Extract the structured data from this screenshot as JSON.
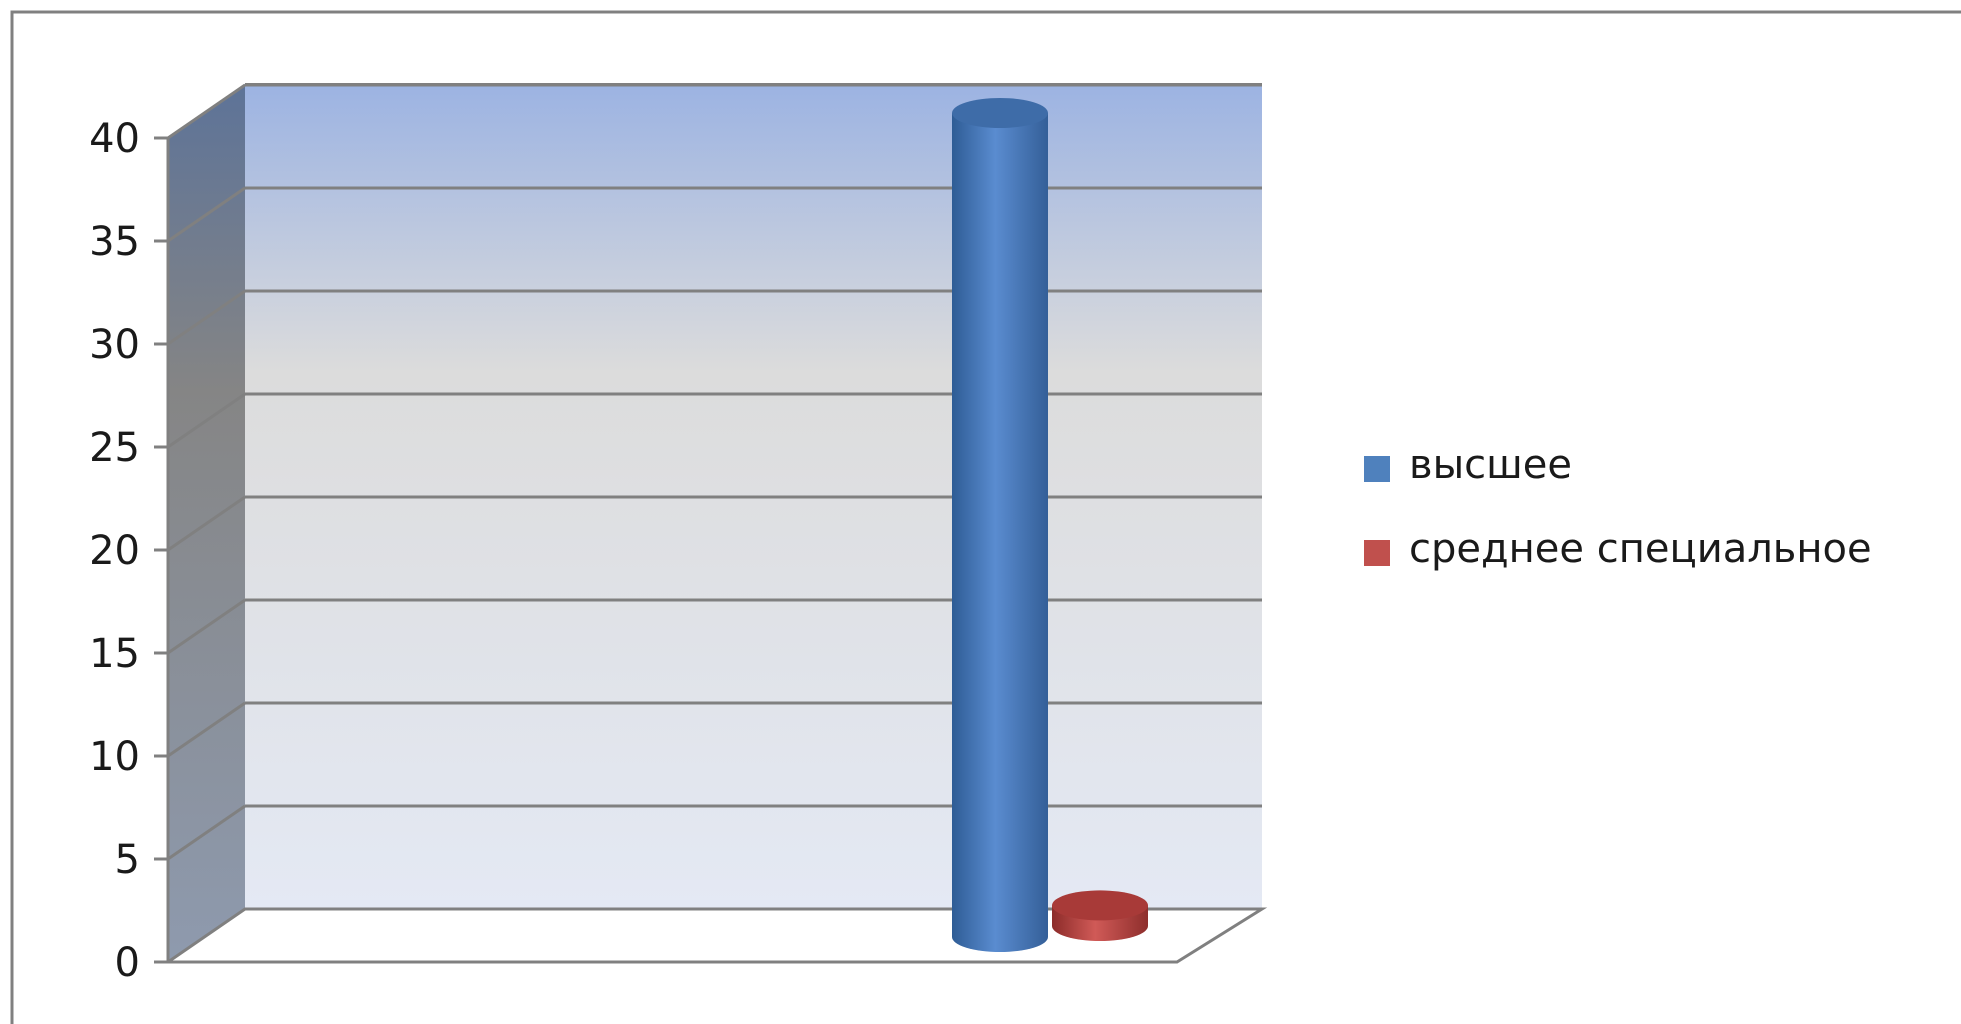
{
  "chart_data": {
    "type": "bar",
    "style": "3d-cylinder",
    "categories": [
      ""
    ],
    "series": [
      {
        "name": "высшее",
        "values": [
          40
        ],
        "color": "#4F81BD"
      },
      {
        "name": "среднее специальное",
        "values": [
          1
        ],
        "color": "#C0504D"
      }
    ],
    "title": "",
    "xlabel": "",
    "ylabel": "",
    "ylim": [
      0,
      40
    ],
    "yticks": [
      "0",
      "5",
      "10",
      "15",
      "20",
      "25",
      "30",
      "35",
      "40"
    ],
    "grid": true,
    "legend_position": "right"
  },
  "colors": {
    "wall_top": "#9CB3E2",
    "wall_mid": "#DCDCDC",
    "wall_bottom": "#E4E9F4",
    "side_wall_top": "#5D7398",
    "side_wall_bottom": "#8E9AAE",
    "gridline": "#808080",
    "frame": "#808080"
  }
}
